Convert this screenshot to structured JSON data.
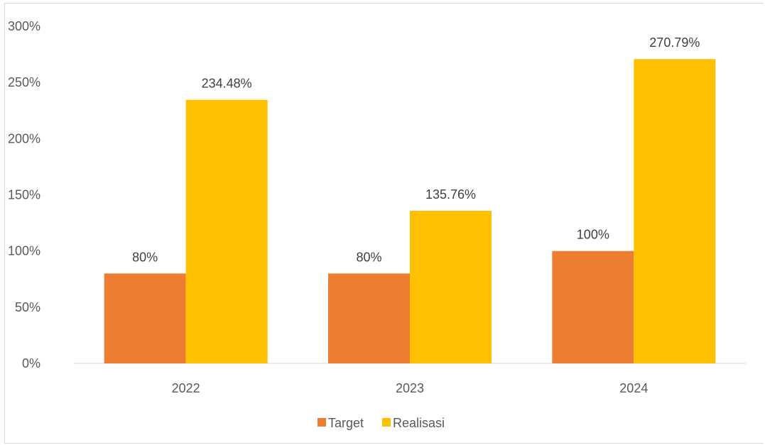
{
  "chart_data": {
    "type": "bar",
    "categories": [
      "2022",
      "2023",
      "2024"
    ],
    "series": [
      {
        "name": "Target",
        "values": [
          80,
          80,
          100
        ],
        "labels": [
          "80%",
          "80%",
          "100%"
        ],
        "color": "#ED7D31"
      },
      {
        "name": "Realisasi",
        "values": [
          234.48,
          135.76,
          270.79
        ],
        "labels": [
          "234.48%",
          "135.76%",
          "270.79%"
        ],
        "color": "#FFC000"
      }
    ],
    "ylim": [
      0,
      300
    ],
    "yticks": [
      0,
      50,
      100,
      150,
      200,
      250,
      300
    ],
    "ytick_labels": [
      "0%",
      "50%",
      "100%",
      "150%",
      "200%",
      "250%",
      "300%"
    ],
    "grid": false,
    "legend": "bottom-center",
    "axis_color": "#d9d9d9",
    "tick_color": "#595959"
  }
}
